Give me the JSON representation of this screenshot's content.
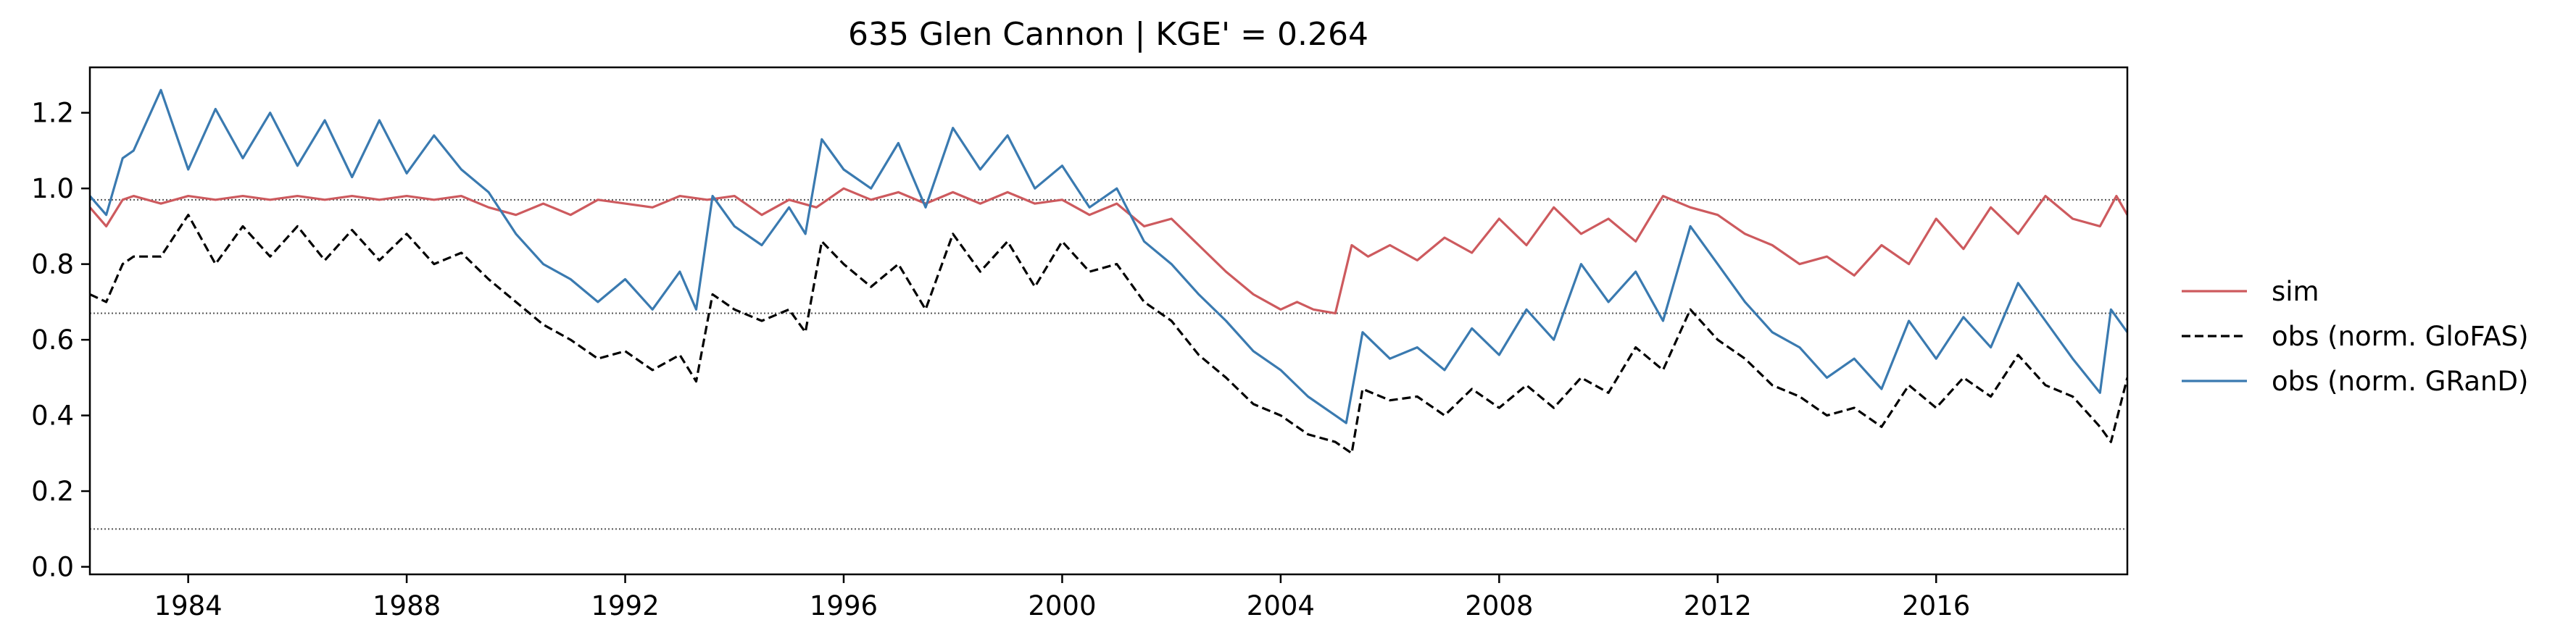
{
  "chart_data": {
    "type": "line",
    "title": "635  Glen Cannon | KGE' = 0.264",
    "xlabel": "",
    "ylabel": "",
    "xlim": [
      1982.2,
      2019.5
    ],
    "ylim": [
      -0.02,
      1.32
    ],
    "x_ticks": [
      1984,
      1988,
      1992,
      1996,
      2000,
      2004,
      2008,
      2012,
      2016
    ],
    "x_tick_labels": [
      "1984",
      "1988",
      "1992",
      "1996",
      "2000",
      "2004",
      "2008",
      "2012",
      "2016"
    ],
    "y_ticks": [
      0.0,
      0.2,
      0.4,
      0.6,
      0.8,
      1.0,
      1.2
    ],
    "y_tick_labels": [
      "0.0",
      "0.2",
      "0.4",
      "0.6",
      "0.8",
      "1.0",
      "1.2"
    ],
    "reference_lines": [
      0.97,
      0.67,
      0.1
    ],
    "legend": {
      "placement": "right",
      "entries": [
        "sim",
        "obs (norm. GloFAS)",
        "obs (norm. GRanD)"
      ]
    },
    "series": [
      {
        "name": "sim",
        "color": "#cd5a5e",
        "dash": "solid",
        "x": [
          1982.2,
          1982.5,
          1982.8,
          1983.0,
          1983.5,
          1984.0,
          1984.5,
          1985.0,
          1985.5,
          1986.0,
          1986.5,
          1987.0,
          1987.5,
          1988.0,
          1988.5,
          1989.0,
          1989.5,
          1990.0,
          1990.5,
          1991.0,
          1991.5,
          1992.0,
          1992.5,
          1993.0,
          1993.5,
          1994.0,
          1994.5,
          1995.0,
          1995.5,
          1996.0,
          1996.5,
          1997.0,
          1997.5,
          1998.0,
          1998.5,
          1999.0,
          1999.5,
          2000.0,
          2000.5,
          2001.0,
          2001.5,
          2002.0,
          2002.5,
          2003.0,
          2003.5,
          2004.0,
          2004.3,
          2004.6,
          2005.0,
          2005.3,
          2005.6,
          2006.0,
          2006.5,
          2007.0,
          2007.5,
          2008.0,
          2008.5,
          2009.0,
          2009.5,
          2010.0,
          2010.5,
          2011.0,
          2011.5,
          2012.0,
          2012.5,
          2013.0,
          2013.5,
          2014.0,
          2014.5,
          2015.0,
          2015.5,
          2016.0,
          2016.5,
          2017.0,
          2017.5,
          2018.0,
          2018.5,
          2019.0,
          2019.3,
          2019.5
        ],
        "y": [
          0.95,
          0.9,
          0.97,
          0.98,
          0.96,
          0.98,
          0.97,
          0.98,
          0.97,
          0.98,
          0.97,
          0.98,
          0.97,
          0.98,
          0.97,
          0.98,
          0.95,
          0.93,
          0.96,
          0.93,
          0.97,
          0.96,
          0.95,
          0.98,
          0.97,
          0.98,
          0.93,
          0.97,
          0.95,
          1.0,
          0.97,
          0.99,
          0.96,
          0.99,
          0.96,
          0.99,
          0.96,
          0.97,
          0.93,
          0.96,
          0.9,
          0.92,
          0.85,
          0.78,
          0.72,
          0.68,
          0.7,
          0.68,
          0.67,
          0.85,
          0.82,
          0.85,
          0.81,
          0.87,
          0.83,
          0.92,
          0.85,
          0.95,
          0.88,
          0.92,
          0.86,
          0.98,
          0.95,
          0.93,
          0.88,
          0.85,
          0.8,
          0.82,
          0.77,
          0.85,
          0.8,
          0.92,
          0.84,
          0.95,
          0.88,
          0.98,
          0.92,
          0.9,
          0.98,
          0.93
        ]
      },
      {
        "name": "obs (norm. GloFAS)",
        "color": "#000000",
        "dash": "dashed",
        "x": [
          1982.2,
          1982.5,
          1982.8,
          1983.0,
          1983.5,
          1984.0,
          1984.5,
          1985.0,
          1985.5,
          1986.0,
          1986.5,
          1987.0,
          1987.5,
          1988.0,
          1988.5,
          1989.0,
          1989.5,
          1990.0,
          1990.5,
          1991.0,
          1991.5,
          1992.0,
          1992.5,
          1993.0,
          1993.3,
          1993.6,
          1994.0,
          1994.5,
          1995.0,
          1995.3,
          1995.6,
          1996.0,
          1996.5,
          1997.0,
          1997.5,
          1998.0,
          1998.5,
          1999.0,
          1999.5,
          2000.0,
          2000.5,
          2001.0,
          2001.5,
          2002.0,
          2002.5,
          2003.0,
          2003.5,
          2004.0,
          2004.5,
          2005.0,
          2005.3,
          2005.5,
          2006.0,
          2006.5,
          2007.0,
          2007.5,
          2008.0,
          2008.5,
          2009.0,
          2009.5,
          2010.0,
          2010.5,
          2011.0,
          2011.5,
          2012.0,
          2012.5,
          2013.0,
          2013.5,
          2014.0,
          2014.5,
          2015.0,
          2015.5,
          2016.0,
          2016.5,
          2017.0,
          2017.5,
          2018.0,
          2018.5,
          2019.0,
          2019.2,
          2019.5
        ],
        "y": [
          0.72,
          0.7,
          0.8,
          0.82,
          0.82,
          0.93,
          0.8,
          0.9,
          0.82,
          0.9,
          0.81,
          0.89,
          0.81,
          0.88,
          0.8,
          0.83,
          0.76,
          0.7,
          0.64,
          0.6,
          0.55,
          0.57,
          0.52,
          0.56,
          0.49,
          0.72,
          0.68,
          0.65,
          0.68,
          0.62,
          0.86,
          0.8,
          0.74,
          0.8,
          0.68,
          0.88,
          0.78,
          0.86,
          0.74,
          0.86,
          0.78,
          0.8,
          0.7,
          0.65,
          0.56,
          0.5,
          0.43,
          0.4,
          0.35,
          0.33,
          0.3,
          0.47,
          0.44,
          0.45,
          0.4,
          0.47,
          0.42,
          0.48,
          0.42,
          0.5,
          0.46,
          0.58,
          0.52,
          0.68,
          0.6,
          0.55,
          0.48,
          0.45,
          0.4,
          0.42,
          0.37,
          0.48,
          0.42,
          0.5,
          0.45,
          0.56,
          0.48,
          0.45,
          0.37,
          0.33,
          0.5
        ]
      },
      {
        "name": "obs (norm. GRanD)",
        "color": "#3a7ab0",
        "dash": "solid",
        "x": [
          1982.2,
          1982.5,
          1982.8,
          1983.0,
          1983.5,
          1984.0,
          1984.5,
          1985.0,
          1985.5,
          1986.0,
          1986.5,
          1987.0,
          1987.5,
          1988.0,
          1988.5,
          1989.0,
          1989.5,
          1990.0,
          1990.5,
          1991.0,
          1991.5,
          1992.0,
          1992.5,
          1993.0,
          1993.3,
          1993.6,
          1994.0,
          1994.5,
          1995.0,
          1995.3,
          1995.6,
          1996.0,
          1996.5,
          1997.0,
          1997.5,
          1998.0,
          1998.5,
          1999.0,
          1999.5,
          2000.0,
          2000.5,
          2001.0,
          2001.5,
          2002.0,
          2002.5,
          2003.0,
          2003.5,
          2004.0,
          2004.5,
          2005.0,
          2005.2,
          2005.5,
          2006.0,
          2006.5,
          2007.0,
          2007.5,
          2008.0,
          2008.5,
          2009.0,
          2009.5,
          2010.0,
          2010.5,
          2011.0,
          2011.5,
          2012.0,
          2012.5,
          2013.0,
          2013.5,
          2014.0,
          2014.5,
          2015.0,
          2015.5,
          2016.0,
          2016.5,
          2017.0,
          2017.5,
          2018.0,
          2018.5,
          2019.0,
          2019.2,
          2019.5
        ],
        "y": [
          0.98,
          0.93,
          1.08,
          1.1,
          1.26,
          1.05,
          1.21,
          1.08,
          1.2,
          1.06,
          1.18,
          1.03,
          1.18,
          1.04,
          1.14,
          1.05,
          0.99,
          0.88,
          0.8,
          0.76,
          0.7,
          0.76,
          0.68,
          0.78,
          0.68,
          0.98,
          0.9,
          0.85,
          0.95,
          0.88,
          1.13,
          1.05,
          1.0,
          1.12,
          0.95,
          1.16,
          1.05,
          1.14,
          1.0,
          1.06,
          0.95,
          1.0,
          0.86,
          0.8,
          0.72,
          0.65,
          0.57,
          0.52,
          0.45,
          0.4,
          0.38,
          0.62,
          0.55,
          0.58,
          0.52,
          0.63,
          0.56,
          0.68,
          0.6,
          0.8,
          0.7,
          0.78,
          0.65,
          0.9,
          0.8,
          0.7,
          0.62,
          0.58,
          0.5,
          0.55,
          0.47,
          0.65,
          0.55,
          0.66,
          0.58,
          0.75,
          0.65,
          0.55,
          0.46,
          0.68,
          0.62
        ]
      }
    ]
  }
}
